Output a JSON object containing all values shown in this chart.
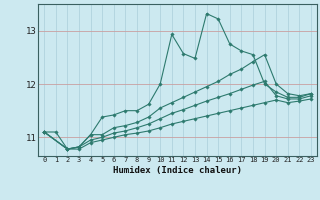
{
  "xlabel": "Humidex (Indice chaleur)",
  "bg_color": "#cce9f0",
  "grid_color_x": "#aacfda",
  "grid_color_y": "#c9a0a0",
  "line_color": "#2d7a6e",
  "xlim": [
    -0.5,
    23.5
  ],
  "ylim": [
    10.65,
    13.5
  ],
  "yticks": [
    11,
    12,
    13
  ],
  "xticks": [
    0,
    1,
    2,
    3,
    4,
    5,
    6,
    7,
    8,
    9,
    10,
    11,
    12,
    13,
    14,
    15,
    16,
    17,
    18,
    19,
    20,
    21,
    22,
    23
  ],
  "lines": [
    {
      "x": [
        0,
        1,
        2,
        3,
        4,
        5,
        6,
        7,
        8,
        9,
        10,
        11,
        12,
        13,
        14,
        15,
        16,
        17,
        18,
        19,
        20,
        21,
        22,
        23
      ],
      "y": [
        11.1,
        11.1,
        10.78,
        10.82,
        11.05,
        11.38,
        11.42,
        11.5,
        11.5,
        11.62,
        12.0,
        12.93,
        12.57,
        12.48,
        13.32,
        13.22,
        12.75,
        12.62,
        12.55,
        12.0,
        11.85,
        11.75,
        11.75,
        11.82
      ]
    },
    {
      "x": [
        0,
        2,
        3,
        4,
        5,
        6,
        7,
        8,
        9,
        10,
        11,
        12,
        13,
        14,
        15,
        16,
        17,
        18,
        19,
        20,
        21,
        22,
        23
      ],
      "y": [
        11.1,
        10.78,
        10.82,
        11.05,
        11.05,
        11.18,
        11.22,
        11.28,
        11.38,
        11.55,
        11.65,
        11.75,
        11.85,
        11.95,
        12.05,
        12.18,
        12.28,
        12.42,
        12.55,
        12.0,
        11.82,
        11.78,
        11.82
      ]
    },
    {
      "x": [
        0,
        2,
        3,
        4,
        5,
        6,
        7,
        8,
        9,
        10,
        11,
        12,
        13,
        14,
        15,
        16,
        17,
        18,
        19,
        20,
        21,
        22,
        23
      ],
      "y": [
        11.1,
        10.78,
        10.82,
        10.95,
        11.0,
        11.08,
        11.12,
        11.18,
        11.25,
        11.35,
        11.45,
        11.52,
        11.6,
        11.68,
        11.75,
        11.82,
        11.9,
        11.98,
        12.05,
        11.78,
        11.72,
        11.72,
        11.78
      ]
    },
    {
      "x": [
        0,
        2,
        3,
        4,
        5,
        6,
        7,
        8,
        9,
        10,
        11,
        12,
        13,
        14,
        15,
        16,
        17,
        18,
        19,
        20,
        21,
        22,
        23
      ],
      "y": [
        11.1,
        10.78,
        10.78,
        10.9,
        10.95,
        11.0,
        11.05,
        11.08,
        11.12,
        11.18,
        11.25,
        11.3,
        11.35,
        11.4,
        11.45,
        11.5,
        11.55,
        11.6,
        11.65,
        11.7,
        11.65,
        11.68,
        11.72
      ]
    }
  ]
}
